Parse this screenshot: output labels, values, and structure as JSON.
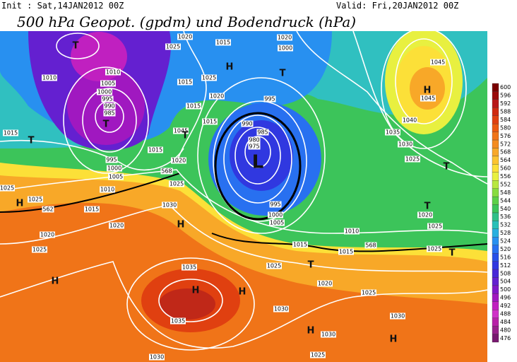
{
  "header": {
    "init": "Init : Sat,14JAN2012 00Z",
    "valid": "Valid: Fri,20JAN2012 00Z",
    "title": "500 hPa Geopot. (gpdm) und Bodendruck (hPa)"
  },
  "legend": {
    "labels": [
      600,
      596,
      592,
      588,
      584,
      580,
      576,
      572,
      568,
      564,
      560,
      556,
      552,
      548,
      544,
      540,
      536,
      532,
      528,
      524,
      520,
      516,
      512,
      508,
      504,
      500,
      496,
      492,
      488,
      484,
      480,
      476
    ],
    "colors": [
      "#7a0000",
      "#9a0a0a",
      "#b81818",
      "#d02a10",
      "#e04010",
      "#ec5a10",
      "#f07418",
      "#f48c20",
      "#f8a828",
      "#fcc430",
      "#fce038",
      "#e8f040",
      "#b8e840",
      "#88dc40",
      "#5cd048",
      "#3cc45a",
      "#30c088",
      "#28c0b8",
      "#28b0e0",
      "#2890f0",
      "#2870f0",
      "#2850e8",
      "#3038e0",
      "#4828d8",
      "#6420d0",
      "#8018c8",
      "#a018c0",
      "#c020c0",
      "#d030c8",
      "#b820a8",
      "#98208c",
      "#781870"
    ]
  },
  "map": {
    "pressure_labels": [
      "1020",
      "1025",
      "1015",
      "1020",
      "1000",
      "1010",
      "1005",
      "1000",
      "995",
      "990",
      "985",
      "1010",
      "1015",
      "1025",
      "1020",
      "1015",
      "1015",
      "1045",
      "995",
      "990",
      "985",
      "980",
      "975",
      "1015",
      "995",
      "1000",
      "1005",
      "1010",
      "1015",
      "1020",
      "1025",
      "1025",
      "1025",
      "1015",
      "1030",
      "1020",
      "1020",
      "1025",
      "995",
      "1000",
      "1005",
      "1010",
      "1015",
      "1015",
      "1025",
      "1035",
      "1020",
      "1025",
      "1030",
      "1030",
      "1030",
      "1035",
      "1030",
      "1025",
      "1040",
      "1035",
      "1030",
      "1025",
      "1045",
      "1045",
      "1020",
      "1025",
      "1025",
      "562",
      "568",
      "568"
    ],
    "centers": [
      "T",
      "T",
      "H",
      "T",
      "T",
      "T",
      "L",
      "T",
      "H",
      "H",
      "T",
      "H",
      "T",
      "T",
      "H",
      "H",
      "H",
      "H",
      "H"
    ]
  }
}
